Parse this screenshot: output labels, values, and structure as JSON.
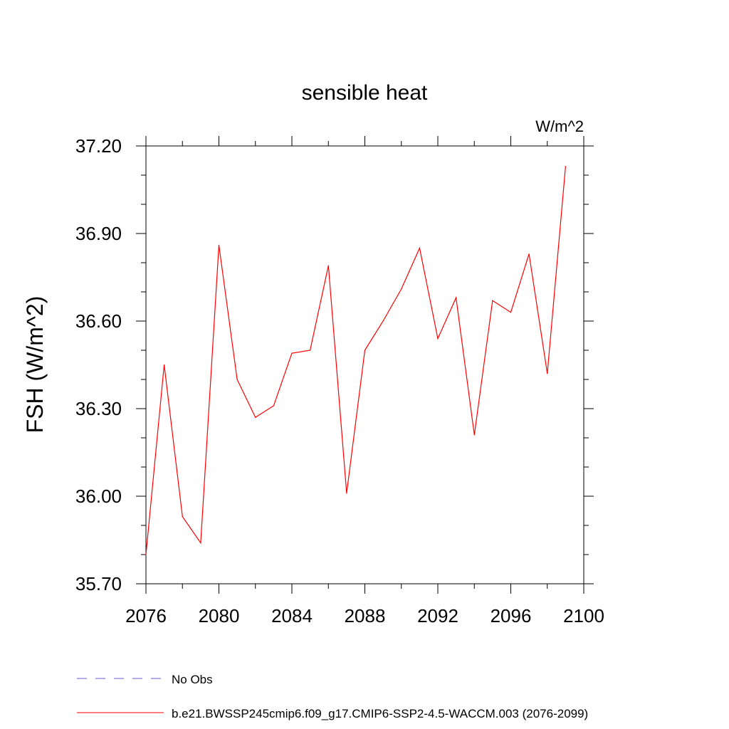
{
  "chart_data": {
    "type": "line",
    "title": "sensible heat",
    "units_label": "W/m^2",
    "ylabel": "FSH  (W/m^2)",
    "xlabel": "",
    "xlim": [
      2076,
      2100
    ],
    "ylim": [
      35.7,
      37.2
    ],
    "xticks": [
      "2076",
      "2080",
      "2084",
      "2088",
      "2092",
      "2096",
      "2100"
    ],
    "yticks": [
      "35.70",
      "36.00",
      "36.30",
      "36.60",
      "36.90",
      "37.20"
    ],
    "series": [
      {
        "name": "b.e21.BWSSP245cmip6.f09_g17.CMIP6-SSP2-4.5-WACCM.003 (2076-2099)",
        "color": "#ff0000",
        "x": [
          2076,
          2077,
          2078,
          2079,
          2080,
          2081,
          2082,
          2083,
          2084,
          2085,
          2086,
          2087,
          2088,
          2089,
          2090,
          2091,
          2092,
          2093,
          2094,
          2095,
          2096,
          2097,
          2098,
          2099
        ],
        "y": [
          35.8,
          36.45,
          35.93,
          35.84,
          36.86,
          36.4,
          36.27,
          36.31,
          36.49,
          36.5,
          36.79,
          36.01,
          36.5,
          36.6,
          36.71,
          36.85,
          36.54,
          36.68,
          36.21,
          36.67,
          36.63,
          36.83,
          36.42,
          37.13
        ]
      }
    ],
    "legend": [
      {
        "label": "No Obs",
        "color": "#6a5acd",
        "style": "dashed"
      },
      {
        "label": "b.e21.BWSSP245cmip6.f09_g17.CMIP6-SSP2-4.5-WACCM.003 (2076-2099)",
        "color": "#ff0000",
        "style": "solid"
      }
    ],
    "legend_position": "bottom-left",
    "grid": false
  }
}
